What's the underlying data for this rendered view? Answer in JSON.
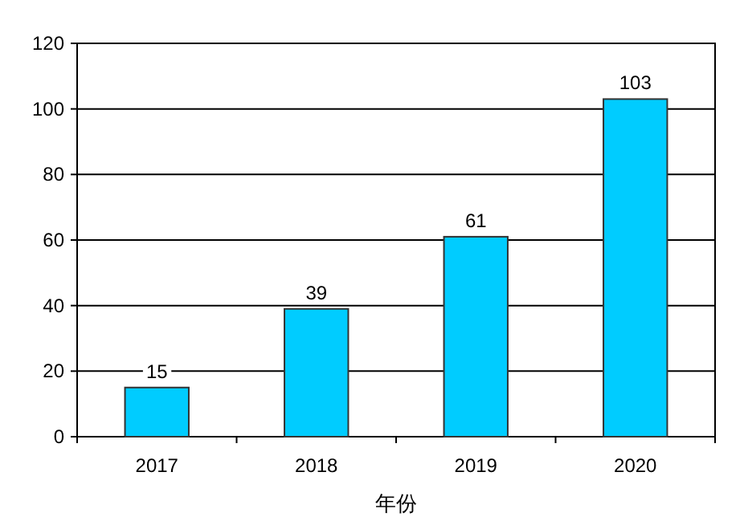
{
  "chart_data": {
    "type": "bar",
    "xlabel": "年份",
    "categories": [
      "2017",
      "2018",
      "2019",
      "2020"
    ],
    "values": [
      15,
      39,
      61,
      103
    ],
    "color": "#00ccff",
    "ylim": [
      0,
      120
    ],
    "yticks": [
      0,
      20,
      40,
      60,
      80,
      100,
      120
    ],
    "grid": "y",
    "data_labels": true
  }
}
